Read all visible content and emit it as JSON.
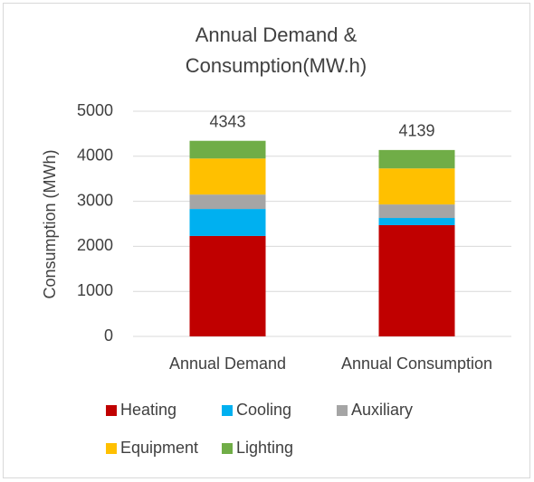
{
  "chart_data": {
    "type": "stacked_bar",
    "title": [
      "Annual Demand &",
      "Consumption(MW.h)"
    ],
    "y_label": "Consumption (MWh)",
    "categories": [
      "Annual Demand",
      "Annual Consumption"
    ],
    "series": [
      {
        "name": "Heating",
        "color": "#c00000",
        "values": [
          2230,
          2470
        ]
      },
      {
        "name": "Cooling",
        "color": "#00b0f0",
        "values": [
          600,
          160
        ]
      },
      {
        "name": "Auxiliary",
        "color": "#a5a5a5",
        "values": [
          320,
          300
        ]
      },
      {
        "name": "Equipment",
        "color": "#ffc000",
        "values": [
          800,
          800
        ]
      },
      {
        "name": "Lighting",
        "color": "#70ad47",
        "values": [
          393,
          409
        ]
      }
    ],
    "totals": [
      4343,
      4139
    ],
    "ylim": [
      0,
      5000
    ],
    "yticks": [
      0,
      1000,
      2000,
      3000,
      4000,
      5000
    ],
    "grid": true,
    "legend": "bottom"
  }
}
